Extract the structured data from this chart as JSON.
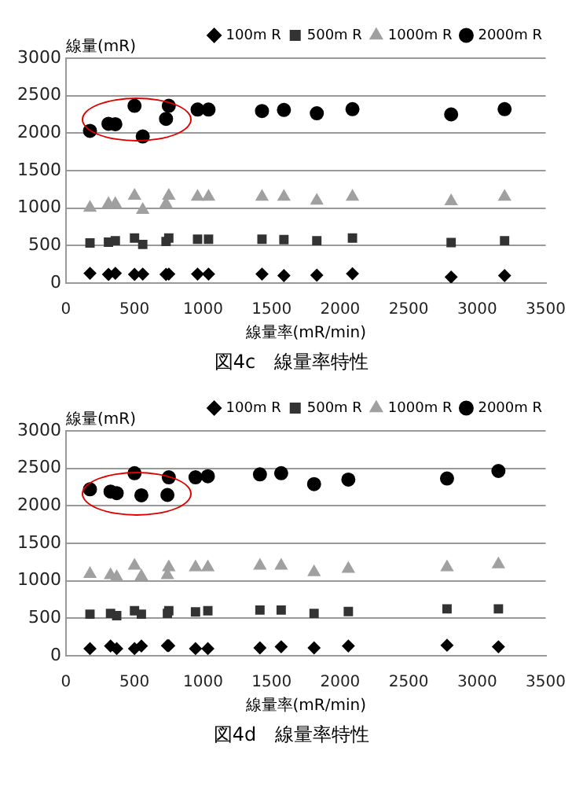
{
  "chart_data": [
    {
      "type": "scatter",
      "title": "図4c　線量率特性",
      "xlabel": "線量率(mR/min)",
      "ylabel": "線量(mR)",
      "xlim": [
        0,
        3500
      ],
      "xticks": [
        0,
        500,
        1000,
        1500,
        2000,
        2500,
        3000,
        3500
      ],
      "ylim": [
        0,
        3000
      ],
      "yticks": [
        0,
        500,
        1000,
        1500,
        2000,
        2500,
        3000
      ],
      "grid": "y",
      "legend": "top right",
      "x": [
        175,
        310,
        360,
        500,
        560,
        730,
        750,
        960,
        1040,
        1430,
        1590,
        1830,
        2090,
        2810,
        3200
      ],
      "series": [
        {
          "name": "100m R",
          "color": "#000000",
          "marker": "diamond",
          "values": [
            130,
            115,
            130,
            115,
            120,
            115,
            120,
            120,
            120,
            120,
            100,
            105,
            125,
            80,
            100
          ]
        },
        {
          "name": "500m R",
          "color": "#333333",
          "marker": "square",
          "values": [
            535,
            545,
            565,
            600,
            515,
            555,
            600,
            585,
            585,
            585,
            580,
            565,
            600,
            540,
            565
          ]
        },
        {
          "name": "1000m R",
          "color": "#a0a0a0",
          "marker": "triangle",
          "values": [
            1005,
            1055,
            1055,
            1165,
            975,
            1055,
            1165,
            1150,
            1150,
            1150,
            1150,
            1100,
            1150,
            1090,
            1150
          ]
        },
        {
          "name": "2000m R",
          "color": "#000000",
          "marker": "circle",
          "values": [
            2030,
            2125,
            2120,
            2365,
            1955,
            2190,
            2365,
            2315,
            2315,
            2295,
            2310,
            2265,
            2320,
            2250,
            2320
          ]
        }
      ]
    },
    {
      "type": "scatter",
      "title": "図4d　線量率特性",
      "xlabel": "線量率(mR/min)",
      "ylabel": "線量(mR)",
      "xlim": [
        0,
        3500
      ],
      "xticks": [
        0,
        500,
        1000,
        1500,
        2000,
        2500,
        3000,
        3500
      ],
      "ylim": [
        0,
        3000
      ],
      "yticks": [
        0,
        500,
        1000,
        1500,
        2000,
        2500,
        3000
      ],
      "grid": "y",
      "legend": "top right",
      "x": [
        175,
        325,
        370,
        500,
        550,
        740,
        750,
        945,
        1035,
        1415,
        1570,
        1810,
        2060,
        2780,
        3155
      ],
      "series": [
        {
          "name": "100m R",
          "color": "#000000",
          "marker": "diamond",
          "values": [
            95,
            130,
            95,
            95,
            130,
            135,
            135,
            95,
            95,
            105,
            120,
            105,
            130,
            140,
            120
          ]
        },
        {
          "name": "500m R",
          "color": "#333333",
          "marker": "square",
          "values": [
            555,
            565,
            535,
            600,
            555,
            565,
            600,
            585,
            600,
            610,
            610,
            565,
            590,
            625,
            625
          ]
        },
        {
          "name": "1000m R",
          "color": "#a0a0a0",
          "marker": "triangle",
          "values": [
            1090,
            1075,
            1050,
            1200,
            1060,
            1075,
            1180,
            1180,
            1180,
            1200,
            1200,
            1115,
            1160,
            1180,
            1220
          ]
        },
        {
          "name": "2000m R",
          "color": "#000000",
          "marker": "circle",
          "values": [
            2220,
            2190,
            2170,
            2435,
            2140,
            2145,
            2380,
            2380,
            2395,
            2420,
            2435,
            2290,
            2350,
            2365,
            2465
          ]
        }
      ]
    }
  ]
}
